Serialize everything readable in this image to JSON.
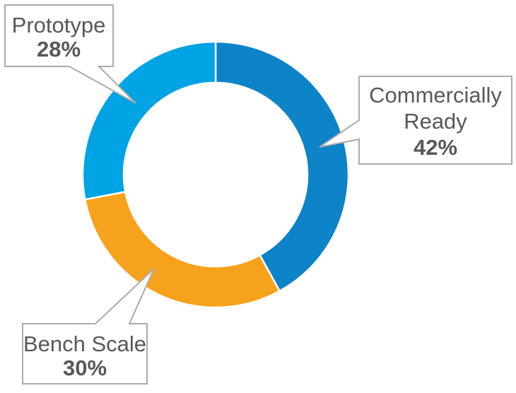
{
  "chart_data": {
    "type": "pie",
    "subtype": "donut",
    "title": "",
    "start_angle_deg": 0,
    "direction": "clockwise",
    "legend_position": "callout-labels",
    "segments": [
      {
        "label": "Commercially Ready",
        "value": 42,
        "display_value": "42%",
        "color": "#0d83c8"
      },
      {
        "label": "Bench Scale",
        "value": 30,
        "display_value": "30%",
        "color": "#f7a21c"
      },
      {
        "label": "Prototype",
        "value": 28,
        "display_value": "28%",
        "color": "#00a3e3"
      }
    ]
  },
  "callouts": {
    "prototype": {
      "line1": "Prototype",
      "pct": "28%"
    },
    "commercially_ready": {
      "line1": "Commercially",
      "line2": "Ready",
      "pct": "42%"
    },
    "bench_scale": {
      "line1": "Bench Scale",
      "pct": "30%"
    }
  },
  "colors": {
    "commercially_ready": "#0d83c8",
    "bench_scale": "#f7a21c",
    "prototype": "#00a3e3",
    "callout_border": "#ababab",
    "callout_fill": "#ffffff",
    "text": "#58585b",
    "background": "#ffffff"
  }
}
